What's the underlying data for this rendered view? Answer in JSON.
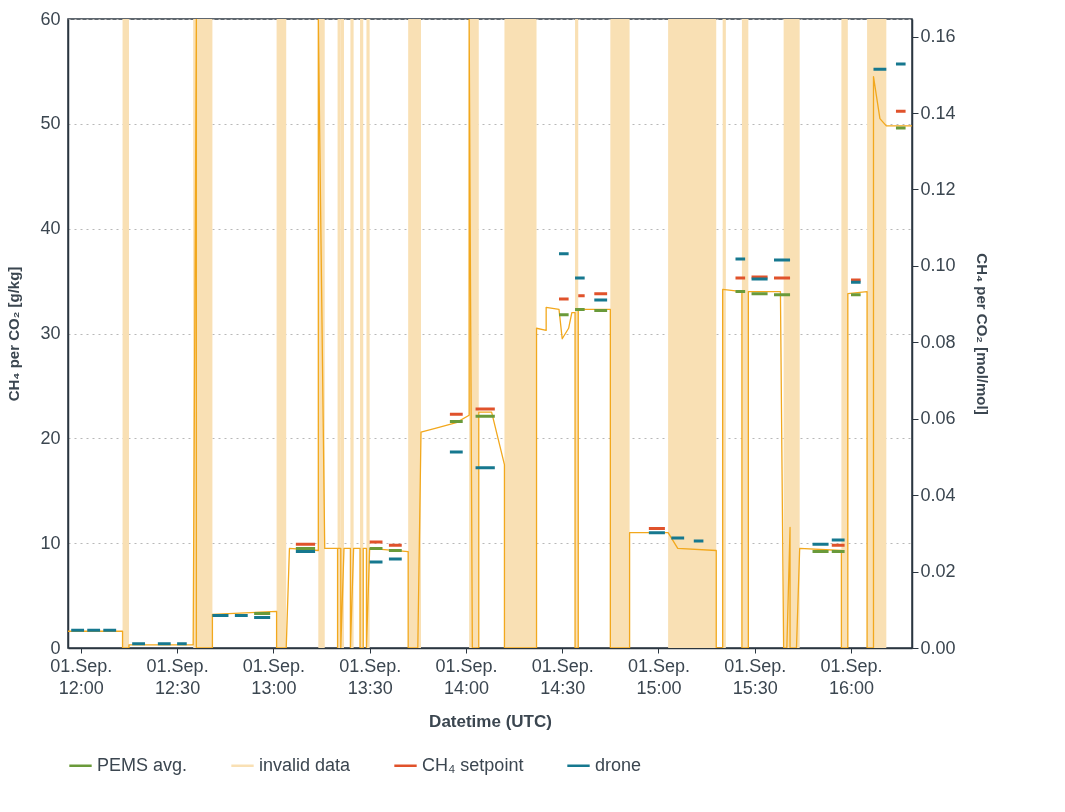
{
  "chart_data": {
    "type": "line",
    "xlabel": "Datetime (UTC)",
    "ylabel": "CH₄ per CO₂ [g/kg]",
    "y2label": "CH₄ per CO₂ [mol/mol]",
    "xlim": [
      "--09-01T11:56",
      "--09-01T16:19"
    ],
    "xticks": [
      {
        "value": "--09-01T12:00",
        "label": "01.Sep. 12:00"
      },
      {
        "value": "--09-01T12:30",
        "label": "01.Sep. 12:30"
      },
      {
        "value": "--09-01T13:00",
        "label": "01.Sep. 13:00"
      },
      {
        "value": "--09-01T13:30",
        "label": "01.Sep. 13:30"
      },
      {
        "value": "--09-01T14:00",
        "label": "01.Sep. 14:00"
      },
      {
        "value": "--09-01T14:30",
        "label": "01.Sep. 14:30"
      },
      {
        "value": "--09-01T15:00",
        "label": "01.Sep. 15:00"
      },
      {
        "value": "--09-01T15:30",
        "label": "01.Sep. 15:30"
      },
      {
        "value": "--09-01T16:00",
        "label": "01.Sep. 16:00"
      }
    ],
    "ylim": [
      0,
      60
    ],
    "yticks": [
      0,
      10,
      20,
      30,
      40,
      50,
      60
    ],
    "y2lim": [
      0,
      0.1646
    ],
    "y2ticks": [
      {
        "value": 0,
        "label": "0.00"
      },
      {
        "value": 0.02,
        "label": "0.02"
      },
      {
        "value": 0.04,
        "label": "0.04"
      },
      {
        "value": 0.06,
        "label": "0.06"
      },
      {
        "value": 0.08,
        "label": "0.08"
      },
      {
        "value": 0.1,
        "label": "0.10"
      },
      {
        "value": 0.12,
        "label": "0.12"
      },
      {
        "value": 0.14,
        "label": "0.14"
      },
      {
        "value": 0.16,
        "label": "0.16"
      }
    ],
    "grid": "y",
    "legend": "bottom",
    "bands": [
      {
        "axis": "x",
        "from": "--09-01T12:13",
        "to": "--09-01T12:15",
        "label": "invalid data",
        "color": "#f9e0b4"
      },
      {
        "axis": "x",
        "from": "--09-01T12:35",
        "to": "--09-01T12:41",
        "color": "#f9e0b4"
      },
      {
        "axis": "x",
        "from": "--09-01T13:01",
        "to": "--09-01T13:04",
        "color": "#f9e0b4"
      },
      {
        "axis": "x",
        "from": "--09-01T13:14",
        "to": "--09-01T13:16",
        "color": "#f9e0b4"
      },
      {
        "axis": "x",
        "from": "--09-01T13:20",
        "to": "--09-01T13:21",
        "color": "#f9e0b4"
      },
      {
        "axis": "x",
        "from": "--09-01T13:21",
        "to": "--09-01T13:22",
        "color": "#f9e0b4"
      },
      {
        "axis": "x",
        "from": "--09-01T13:24",
        "to": "--09-01T13:25",
        "color": "#f9e0b4"
      },
      {
        "axis": "x",
        "from": "--09-01T13:27",
        "to": "--09-01T13:28",
        "color": "#f9e0b4"
      },
      {
        "axis": "x",
        "from": "--09-01T13:29",
        "to": "--09-01T13:30",
        "color": "#f9e0b4"
      },
      {
        "axis": "x",
        "from": "--09-01T13:42",
        "to": "--09-01T13:46",
        "color": "#f9e0b4"
      },
      {
        "axis": "x",
        "from": "--09-01T14:01",
        "to": "--09-01T14:04",
        "color": "#f9e0b4"
      },
      {
        "axis": "x",
        "from": "--09-01T14:12",
        "to": "--09-01T14:22",
        "color": "#f9e0b4"
      },
      {
        "axis": "x",
        "from": "--09-01T14:34",
        "to": "--09-01T14:35",
        "color": "#f9e0b4"
      },
      {
        "axis": "x",
        "from": "--09-01T14:45",
        "to": "--09-01T14:51",
        "color": "#f9e0b4"
      },
      {
        "axis": "x",
        "from": "--09-01T15:03",
        "to": "--09-01T15:18",
        "color": "#f9e0b4"
      },
      {
        "axis": "x",
        "from": "--09-01T15:20",
        "to": "--09-01T15:21",
        "color": "#f9e0b4"
      },
      {
        "axis": "x",
        "from": "--09-01T15:26",
        "to": "--09-01T15:28",
        "color": "#f9e0b4"
      },
      {
        "axis": "x",
        "from": "--09-01T15:39",
        "to": "--09-01T15:44",
        "color": "#f9e0b4"
      },
      {
        "axis": "x",
        "from": "--09-01T15:57",
        "to": "--09-01T15:59",
        "color": "#f9e0b4"
      },
      {
        "axis": "x",
        "from": "--09-01T16:05",
        "to": "--09-01T16:11",
        "color": "#f9e0b4"
      }
    ],
    "series": [
      {
        "color": "#f2a81d",
        "x": [
          "--09-01T11:56",
          "--09-01T12:13",
          "--09-01T12:13",
          "--09-01T12:15",
          "--09-01T12:15",
          "--09-01T12:35",
          "--09-01T12:36",
          "--09-01T12:36",
          "--09-01T12:41",
          "--09-01T12:41",
          "--09-01T13:01",
          "--09-01T13:01",
          "--09-01T13:04",
          "--09-01T13:05",
          "--09-01T13:14",
          "--09-01T13:14",
          "--09-01T13:16",
          "--09-01T13:20",
          "--09-01T13:20",
          "--09-01T13:20",
          "--09-01T13:21",
          "--09-01T13:21",
          "--09-01T13:22",
          "--09-01T13:24",
          "--09-01T13:24",
          "--09-01T13:25",
          "--09-01T13:27",
          "--09-01T13:27",
          "--09-01T13:28",
          "--09-01T13:28",
          "--09-01T13:29",
          "--09-01T13:29",
          "--09-01T13:30",
          "--09-01T13:42",
          "--09-01T13:42",
          "--09-01T13:45",
          "--09-01T13:46",
          "--09-01T13:51",
          "--09-01T13:57",
          "--09-01T14:01",
          "--09-01T14:01",
          "--09-01T14:02",
          "--09-01T14:04",
          "--09-01T14:04",
          "--09-01T14:08",
          "--09-01T14:10",
          "--09-01T14:12",
          "--09-01T14:12",
          "--09-01T14:22",
          "--09-01T14:22",
          "--09-01T14:25",
          "--09-01T14:25",
          "--09-01T14:29",
          "--09-01T14:30",
          "--09-01T14:32",
          "--09-01T14:33",
          "--09-01T14:34",
          "--09-01T14:34",
          "--09-01T14:35",
          "--09-01T14:35",
          "--09-01T14:45",
          "--09-01T14:45",
          "--09-01T14:51",
          "--09-01T14:51",
          "--09-01T15:03",
          "--09-01T15:06",
          "--09-01T15:18",
          "--09-01T15:18",
          "--09-01T15:20",
          "--09-01T15:20",
          "--09-01T15:26",
          "--09-01T15:26",
          "--09-01T15:28",
          "--09-01T15:28",
          "--09-01T15:38",
          "--09-01T15:39",
          "--09-01T15:40",
          "--09-01T15:41",
          "--09-01T15:41",
          "--09-01T15:43",
          "--09-01T15:44",
          "--09-01T15:57",
          "--09-01T15:57",
          "--09-01T15:59",
          "--09-01T15:59",
          "--09-01T16:05",
          "--09-01T16:05",
          "--09-01T16:07",
          "--09-01T16:07",
          "--09-01T16:09",
          "--09-01T16:11",
          "--09-01T16:19"
        ],
        "values": [
          1.6,
          1.6,
          0,
          0,
          0.3,
          0.3,
          60,
          0,
          0,
          3.2,
          3.5,
          0,
          0,
          9.5,
          9.3,
          60,
          9.5,
          9.5,
          0,
          9.5,
          9.5,
          0,
          9.5,
          9.5,
          0,
          9.5,
          9.5,
          0,
          0,
          9.5,
          9.5,
          0,
          9.5,
          9.2,
          0,
          0,
          20.6,
          21,
          21.5,
          22.2,
          60,
          0,
          0,
          22.5,
          22.5,
          20,
          17.5,
          0,
          0,
          30.5,
          30.3,
          32.5,
          32.3,
          29.5,
          30.5,
          32,
          32,
          0,
          0,
          32.3,
          32.3,
          0,
          0,
          11,
          11,
          9.5,
          9.3,
          0,
          0,
          34.2,
          34,
          0,
          0,
          34,
          34,
          0,
          0,
          11.5,
          0,
          0,
          9.5,
          9.3,
          0,
          0,
          33.8,
          34,
          0,
          0,
          54.5,
          50.5,
          49.8,
          49.8
        ]
      },
      {
        "name": "PEMS avg.",
        "color": "#6a9a3a",
        "x": [
          "--09-01T12:54",
          "--09-01T12:59",
          null,
          "--09-01T13:07",
          "--09-01T13:13",
          null,
          "--09-01T13:30",
          "--09-01T13:34",
          null,
          "--09-01T13:36",
          "--09-01T13:40",
          null,
          "--09-01T13:55",
          "--09-01T13:59",
          null,
          "--09-01T14:03",
          "--09-01T14:09",
          null,
          "--09-01T14:29",
          "--09-01T14:32",
          null,
          "--09-01T14:34",
          "--09-01T14:37",
          null,
          "--09-01T14:40",
          "--09-01T14:44",
          null,
          "--09-01T15:24",
          "--09-01T15:27",
          null,
          "--09-01T15:29",
          "--09-01T15:34",
          null,
          "--09-01T15:36",
          "--09-01T15:41",
          null,
          "--09-01T15:48",
          "--09-01T15:53",
          null,
          "--09-01T15:54",
          "--09-01T15:58",
          null,
          "--09-01T16:00",
          "--09-01T16:03",
          null,
          "--09-01T16:14",
          "--09-01T16:17"
        ],
        "values": [
          3.3,
          3.3,
          null,
          9.5,
          9.5,
          null,
          9.5,
          9.5,
          null,
          9.3,
          9.3,
          null,
          21.6,
          21.6,
          null,
          22.1,
          22.1,
          null,
          31.8,
          31.8,
          null,
          32.3,
          32.3,
          null,
          32.2,
          32.2,
          null,
          34,
          34,
          null,
          33.8,
          33.8,
          null,
          33.7,
          33.7,
          null,
          9.2,
          9.2,
          null,
          9.2,
          9.2,
          null,
          33.7,
          33.7,
          null,
          49.6,
          49.6
        ]
      },
      {
        "name": "CH₄ setpoint",
        "color": "#e0522b",
        "x": [
          "--09-01T13:07",
          "--09-01T13:13",
          null,
          "--09-01T13:30",
          "--09-01T13:34",
          null,
          "--09-01T13:36",
          "--09-01T13:40",
          null,
          "--09-01T13:55",
          "--09-01T13:59",
          null,
          "--09-01T14:03",
          "--09-01T14:09",
          null,
          "--09-01T14:29",
          "--09-01T14:32",
          null,
          "--09-01T14:35",
          "--09-01T14:37",
          null,
          "--09-01T14:40",
          "--09-01T14:44",
          null,
          "--09-01T14:57",
          "--09-01T15:02",
          null,
          "--09-01T15:24",
          "--09-01T15:27",
          null,
          "--09-01T15:29",
          "--09-01T15:34",
          null,
          "--09-01T15:36",
          "--09-01T15:41",
          null,
          "--09-01T15:54",
          "--09-01T15:58",
          null,
          "--09-01T16:00",
          "--09-01T16:03",
          null,
          "--09-01T16:14",
          "--09-01T16:17"
        ],
        "values": [
          9.9,
          9.9,
          null,
          10.1,
          10.1,
          null,
          9.8,
          9.8,
          null,
          22.3,
          22.3,
          null,
          22.8,
          22.8,
          null,
          33.3,
          33.3,
          null,
          33.6,
          33.6,
          null,
          33.8,
          33.8,
          null,
          11.4,
          11.4,
          null,
          35.3,
          35.3,
          null,
          35.4,
          35.4,
          null,
          35.3,
          35.3,
          null,
          9.8,
          9.8,
          null,
          35.1,
          35.1,
          null,
          51.2,
          51.2
        ]
      },
      {
        "name": "drone",
        "color": "#16788f",
        "x": [
          "--09-01T11:57",
          "--09-01T12:01",
          null,
          "--09-01T12:02",
          "--09-01T12:06",
          null,
          "--09-01T12:07",
          "--09-01T12:11",
          null,
          "--09-01T12:16",
          "--09-01T12:20",
          null,
          "--09-01T12:24",
          "--09-01T12:28",
          null,
          "--09-01T12:30",
          "--09-01T12:33",
          null,
          "--09-01T12:41",
          "--09-01T12:46",
          null,
          "--09-01T12:48",
          "--09-01T12:52",
          null,
          "--09-01T12:54",
          "--09-01T12:59",
          null,
          "--09-01T13:07",
          "--09-01T13:13",
          null,
          "--09-01T13:30",
          "--09-01T13:34",
          null,
          "--09-01T13:36",
          "--09-01T13:40",
          null,
          "--09-01T13:55",
          "--09-01T13:59",
          null,
          "--09-01T14:03",
          "--09-01T14:09",
          null,
          "--09-01T14:29",
          "--09-01T14:32",
          null,
          "--09-01T14:34",
          "--09-01T14:37",
          null,
          "--09-01T14:40",
          "--09-01T14:44",
          null,
          "--09-01T14:57",
          "--09-01T15:02",
          null,
          "--09-01T15:04",
          "--09-01T15:08",
          null,
          "--09-01T15:11",
          "--09-01T15:14",
          null,
          "--09-01T15:24",
          "--09-01T15:27",
          null,
          "--09-01T15:29",
          "--09-01T15:34",
          null,
          "--09-01T15:36",
          "--09-01T15:41",
          null,
          "--09-01T15:48",
          "--09-01T15:53",
          null,
          "--09-01T15:54",
          "--09-01T15:58",
          null,
          "--09-01T16:00",
          "--09-01T16:03",
          null,
          "--09-01T16:07",
          "--09-01T16:11",
          null,
          "--09-01T16:14",
          "--09-01T16:17"
        ],
        "values": [
          1.7,
          1.7,
          null,
          1.7,
          1.7,
          null,
          1.7,
          1.7,
          null,
          0.4,
          0.4,
          null,
          0.4,
          0.4,
          null,
          0.4,
          0.4,
          null,
          3.1,
          3.1,
          null,
          3.1,
          3.1,
          null,
          2.9,
          2.9,
          null,
          9.2,
          9.2,
          null,
          8.2,
          8.2,
          null,
          8.5,
          8.5,
          null,
          18.7,
          18.7,
          null,
          17.2,
          17.2,
          null,
          37.6,
          37.6,
          null,
          35.3,
          35.3,
          null,
          33.2,
          33.2,
          null,
          11,
          11,
          null,
          10.5,
          10.5,
          null,
          10.2,
          10.2,
          null,
          37.1,
          37.1,
          null,
          35.2,
          35.2,
          null,
          37,
          37,
          null,
          9.9,
          9.9,
          null,
          10.3,
          10.3,
          null,
          34.9,
          34.9,
          null,
          55.2,
          55.2,
          null,
          55.7,
          55.7
        ]
      }
    ]
  }
}
